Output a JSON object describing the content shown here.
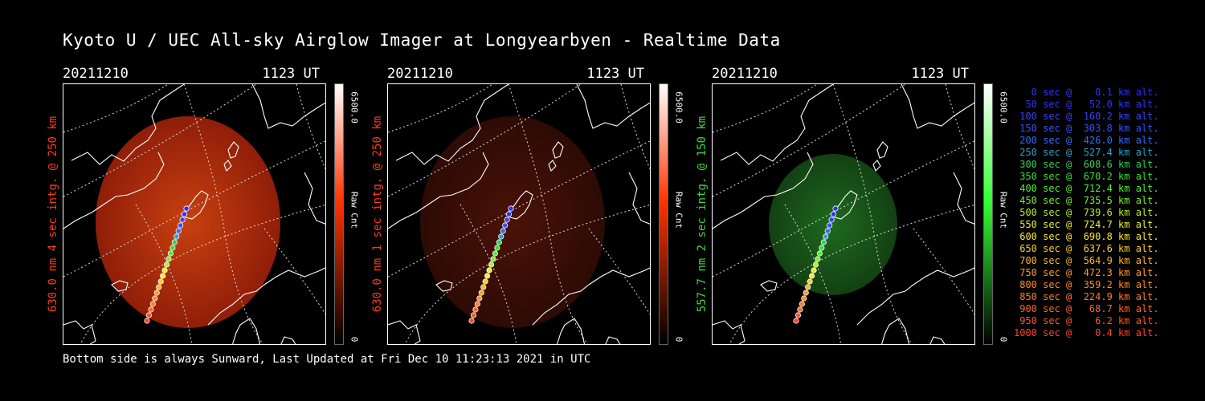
{
  "title": "Kyoto U / UEC All-sky Airglow Imager at Longyearbyen - Realtime Data",
  "footer": "Bottom side is always Sunward, Last Updated at Fri Dec 10 11:23:13 2021 in UTC",
  "panels": [
    {
      "date": "20211210",
      "time": "1123 UT",
      "ylabel": "630.0 nm 4 sec intg. @ 250 km",
      "label_color": "#ff3a1a",
      "cb_max": "6500.0",
      "cb_label": "Raw Cnt",
      "cb_min": "0",
      "cb_color": "#ff3300"
    },
    {
      "date": "20211210",
      "time": "1123 UT",
      "ylabel": "630.0 nm 1 sec intg. @ 250 km",
      "label_color": "#ff3a1a",
      "cb_max": "6500.0",
      "cb_label": "Raw Cnt",
      "cb_min": "0",
      "cb_color": "#ff3300"
    },
    {
      "date": "20211210",
      "time": "1123 UT",
      "ylabel": "557.7 nm 2 sec intg. @ 150 km",
      "label_color": "#3bd93b",
      "cb_max": "6500.0",
      "cb_label": "Raw Cnt",
      "cb_min": "0",
      "cb_color": "#33ff33"
    }
  ],
  "legend": [
    {
      "text": "   0 sec @    0.1 km alt.",
      "color": "#3030ff"
    },
    {
      "text": "  50 sec @   52.0 km alt.",
      "color": "#3030ff"
    },
    {
      "text": " 100 sec @  160.2 km alt.",
      "color": "#3a40ff"
    },
    {
      "text": " 150 sec @  303.8 km alt.",
      "color": "#3a50ff"
    },
    {
      "text": " 200 sec @  426.0 km alt.",
      "color": "#2e6cff"
    },
    {
      "text": " 250 sec @  527.4 km alt.",
      "color": "#2aa0c8"
    },
    {
      "text": " 300 sec @  608.6 km alt.",
      "color": "#2ed060"
    },
    {
      "text": " 350 sec @  670.2 km alt.",
      "color": "#34e034"
    },
    {
      "text": " 400 sec @  712.4 km alt.",
      "color": "#50f030"
    },
    {
      "text": " 450 sec @  735.5 km alt.",
      "color": "#7af028"
    },
    {
      "text": " 500 sec @  739.6 km alt.",
      "color": "#b4f028"
    },
    {
      "text": " 550 sec @  724.7 km alt.",
      "color": "#e8f030"
    },
    {
      "text": " 600 sec @  690.8 km alt.",
      "color": "#ffe830"
    },
    {
      "text": " 650 sec @  637.6 km alt.",
      "color": "#ffcc28"
    },
    {
      "text": " 700 sec @  564.9 km alt.",
      "color": "#ffb428"
    },
    {
      "text": " 750 sec @  472.3 km alt.",
      "color": "#ff9c28"
    },
    {
      "text": " 800 sec @  359.2 km alt.",
      "color": "#ff8a28"
    },
    {
      "text": " 850 sec @  224.9 km alt.",
      "color": "#ff7a28"
    },
    {
      "text": " 900 sec @   68.7 km alt.",
      "color": "#ff6428"
    },
    {
      "text": " 950 sec @    6.2 km alt.",
      "color": "#ff5428"
    },
    {
      "text": "1000 sec @    0.4 km alt.",
      "color": "#ff4028"
    }
  ]
}
